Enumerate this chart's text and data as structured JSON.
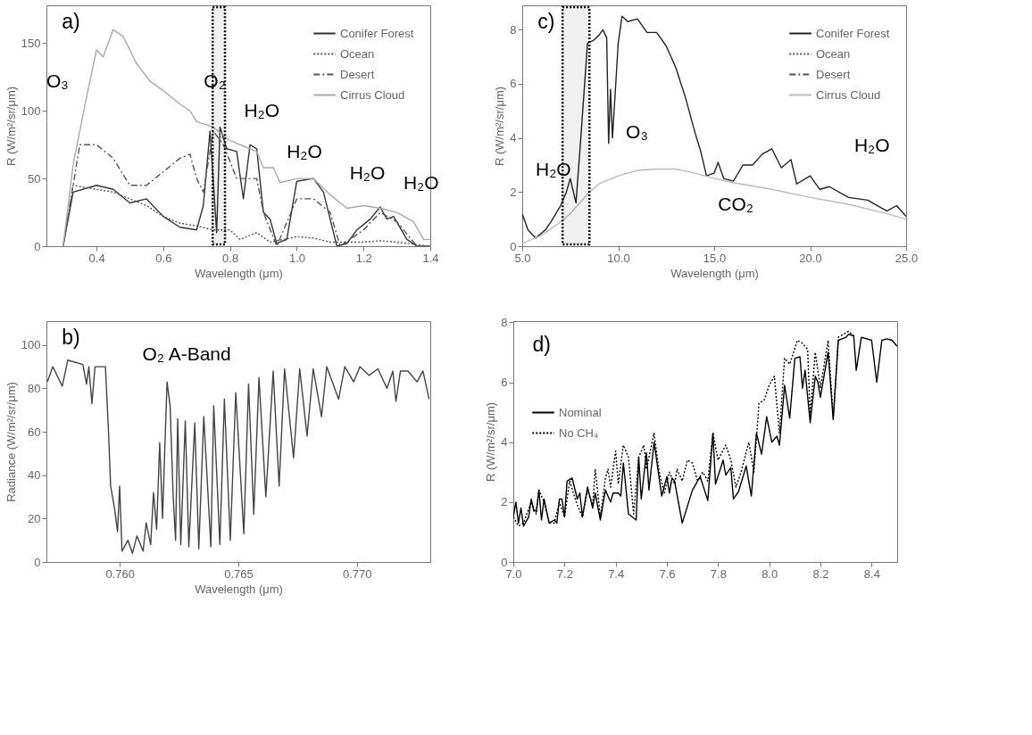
{
  "chart_data": [
    {
      "type": "line",
      "xlabel": "Wavelength (μm)",
      "ylabel": "R (W/m²/sr/μm)",
      "xlim": [
        0.25,
        1.4
      ],
      "ylim": [
        0,
        178
      ],
      "xticks": [
        0.4,
        0.6,
        0.8,
        {
          "value": 1.0,
          "label": "1.0"
        },
        1.2,
        1.4
      ],
      "yticks": [
        0,
        50,
        100,
        150
      ],
      "legend": "top right",
      "marker": "none",
      "series": [
        {
          "name": "Conifer Forest",
          "color": "#333333",
          "line_style": "solid",
          "x": [
            0.3,
            0.33,
            0.4,
            0.45,
            0.5,
            0.55,
            0.6,
            0.65,
            0.7,
            0.72,
            0.74,
            0.76,
            0.77,
            0.79,
            0.82,
            0.84,
            0.86,
            0.88,
            0.9,
            0.92,
            0.94,
            0.97,
            1.0,
            1.05,
            1.08,
            1.12,
            1.15,
            1.18,
            1.22,
            1.25,
            1.27,
            1.29,
            1.33,
            1.36,
            1.4
          ],
          "values": [
            0,
            40,
            45,
            42,
            32,
            35,
            22,
            14,
            12,
            30,
            85,
            10,
            88,
            72,
            70,
            35,
            75,
            72,
            25,
            20,
            2,
            5,
            48,
            50,
            40,
            0,
            2,
            12,
            20,
            29,
            20,
            22,
            5,
            0,
            0
          ]
        },
        {
          "name": "Ocean",
          "color": "#555555",
          "line_style": "dotted",
          "x": [
            0.3,
            0.33,
            0.4,
            0.45,
            0.5,
            0.55,
            0.6,
            0.65,
            0.7,
            0.75,
            0.8,
            0.83,
            0.88,
            0.92,
            1.0,
            1.05,
            1.1,
            1.2,
            1.25,
            1.3,
            1.4
          ],
          "values": [
            0,
            45,
            42,
            40,
            35,
            30,
            22,
            17,
            15,
            12,
            12,
            5,
            10,
            3,
            7,
            6,
            3,
            3,
            4,
            3,
            0
          ]
        },
        {
          "name": "Desert",
          "color": "#555555",
          "line_style": "dashed",
          "x": [
            0.3,
            0.35,
            0.4,
            0.45,
            0.5,
            0.55,
            0.6,
            0.65,
            0.68,
            0.7,
            0.72,
            0.75,
            0.78,
            0.82,
            0.85,
            0.88,
            0.9,
            0.94,
            1.0,
            1.05,
            1.1,
            1.13,
            1.2,
            1.25,
            1.3,
            1.36
          ],
          "values": [
            0,
            75,
            75,
            65,
            45,
            45,
            55,
            65,
            68,
            50,
            40,
            85,
            75,
            50,
            50,
            50,
            25,
            0,
            35,
            35,
            25,
            0,
            12,
            25,
            18,
            0
          ]
        },
        {
          "name": "Cirrus Cloud",
          "color": "#aaaaaa",
          "line_style": "solid",
          "x": [
            0.3,
            0.33,
            0.37,
            0.4,
            0.42,
            0.45,
            0.48,
            0.52,
            0.56,
            0.6,
            0.65,
            0.68,
            0.7,
            0.75,
            0.8,
            0.85,
            0.88,
            0.9,
            0.93,
            0.95,
            1.0,
            1.05,
            1.1,
            1.15,
            1.2,
            1.25,
            1.3,
            1.35,
            1.38,
            1.4
          ],
          "values": [
            0,
            60,
            110,
            145,
            140,
            160,
            155,
            135,
            122,
            115,
            105,
            100,
            92,
            88,
            78,
            73,
            70,
            58,
            58,
            47,
            50,
            50,
            38,
            28,
            30,
            28,
            25,
            18,
            5,
            5
          ]
        }
      ],
      "bands": [
        {
          "axis": "x",
          "from": 0.748,
          "to": 0.785,
          "color": "#000000"
        }
      ],
      "annotations": [
        "a)",
        "O₃",
        "O₂",
        "H₂O",
        "H₂O",
        "H₂O",
        "H₂O"
      ]
    },
    {
      "type": "line",
      "xlabel": "Wavelength (μm)",
      "ylabel": "R (W/m²/sr/μm)",
      "xlim": [
        5,
        25
      ],
      "ylim": [
        0,
        8.9
      ],
      "xticks": [
        {
          "value": 5,
          "label": "5.0"
        },
        {
          "value": 10,
          "label": "10.0"
        },
        {
          "value": 15,
          "label": "15.0"
        },
        {
          "value": 20,
          "label": "20.0"
        },
        {
          "value": 25,
          "label": "25.0"
        }
      ],
      "yticks": [
        0,
        2,
        4,
        6,
        8
      ],
      "legend": "top right",
      "marker": "none",
      "series": [
        {
          "name": "Conifer Forest",
          "color": "#222222",
          "line_style": "solid",
          "x": [
            5,
            5.3,
            5.7,
            6.2,
            6.5,
            7,
            7.3,
            7.5,
            7.8,
            8,
            8.2,
            8.4,
            8.7,
            9,
            9.2,
            9.4,
            9.5,
            9.6,
            9.7,
            10,
            10.2,
            10.5,
            11,
            11.5,
            12,
            12.5,
            13,
            13.5,
            14,
            14.3,
            14.6,
            15,
            15.2,
            15.5,
            16,
            16.5,
            17,
            17.5,
            18,
            18.5,
            19,
            19.3,
            20,
            20.5,
            21,
            22,
            23,
            24,
            24.5,
            25
          ],
          "values": [
            1.2,
            0.6,
            0.3,
            0.6,
            0.9,
            1.5,
            2,
            2.5,
            1.6,
            3.5,
            5.5,
            7.5,
            7.6,
            7.8,
            8.0,
            7.7,
            3.8,
            5.8,
            4.0,
            7.5,
            8.5,
            8.3,
            8.4,
            7.9,
            7.9,
            7.4,
            6.6,
            5.5,
            4.2,
            3.5,
            2.6,
            2.7,
            3.1,
            2.5,
            2.4,
            3.0,
            3.0,
            3.4,
            3.6,
            2.9,
            3.2,
            2.3,
            2.6,
            2.1,
            2.2,
            1.8,
            1.7,
            1.3,
            1.5,
            1.1
          ]
        },
        {
          "name": "Ocean",
          "color": "#555555",
          "line_style": "dotted"
        },
        {
          "name": "Desert",
          "color": "#555555",
          "line_style": "dashed"
        },
        {
          "name": "Cirrus Cloud",
          "color": "#bbbbbb",
          "line_style": "solid",
          "x": [
            5,
            6,
            7,
            7.5,
            8,
            8.5,
            9,
            10,
            11,
            12,
            13,
            14,
            15,
            16,
            18,
            20,
            22,
            24,
            25
          ],
          "values": [
            0.1,
            0.4,
            0.9,
            1.2,
            1.6,
            2.0,
            2.3,
            2.6,
            2.8,
            2.85,
            2.85,
            2.7,
            2.5,
            2.35,
            2.1,
            1.8,
            1.55,
            1.2,
            1.0
          ]
        }
      ],
      "bands": [
        {
          "axis": "x",
          "from": 7.1,
          "to": 8.5,
          "color": "#000000"
        }
      ],
      "annotations": [
        "c)",
        "H₂O",
        "O₃",
        "CO₂",
        "H₂O"
      ]
    },
    {
      "type": "line",
      "xlabel": "Wavelength (μm)",
      "ylabel": "Radiance (W/m²/sr/μm)",
      "xlim": [
        0.7569,
        0.7731
      ],
      "ylim": [
        0,
        111
      ],
      "xticks": [
        {
          "value": 0.76,
          "label": "0.760"
        },
        {
          "value": 0.765,
          "label": "0.765"
        },
        {
          "value": 0.77,
          "label": "0.770"
        }
      ],
      "yticks": [
        0,
        20,
        40,
        60,
        80,
        100
      ],
      "marker": "none",
      "series": [
        {
          "color": "#444444",
          "line_style": "solid",
          "x": [
            0.75694,
            0.75717,
            0.75757,
            0.7578,
            0.75844,
            0.75859,
            0.75869,
            0.75882,
            0.75895,
            0.75939,
            0.75952,
            0.75961,
            0.75977,
            0.7599,
            0.75999,
            0.76009,
            0.76034,
            0.76053,
            0.76072,
            0.76098,
            0.76111,
            0.7613,
            0.76142,
            0.76155,
            0.76168,
            0.7618,
            0.76199,
            0.76212,
            0.76225,
            0.76235,
            0.76244,
            0.76257,
            0.76276,
            0.76291,
            0.76316,
            0.76333,
            0.76354,
            0.76384,
            0.76396,
            0.76422,
            0.76441,
            0.76466,
            0.76489,
            0.76523,
            0.76543,
            0.76565,
            0.76587,
            0.76616,
            0.76647,
            0.76672,
            0.76695,
            0.76733,
            0.76759,
            0.7679,
            0.76816,
            0.76851,
            0.76873,
            0.76923,
            0.76949,
            0.76987,
            0.77013,
            0.77051,
            0.77089,
            0.77127,
            0.77152,
            0.77165,
            0.77184,
            0.77216,
            0.77254,
            0.77279,
            0.77305
          ],
          "values": [
            83,
            90,
            81,
            93,
            91,
            82,
            90,
            73,
            90,
            90,
            60,
            35,
            25,
            14,
            35,
            5,
            10,
            4,
            12,
            5,
            18,
            8,
            32,
            15,
            55,
            20,
            83,
            72,
            30,
            10,
            66,
            8,
            65,
            7,
            64,
            6,
            67,
            7,
            72,
            8,
            75,
            10,
            78,
            13,
            82,
            22,
            85,
            30,
            88,
            35,
            89,
            48,
            89,
            58,
            89,
            67,
            90,
            75,
            90,
            83,
            90,
            86,
            89,
            80,
            88,
            74,
            88,
            88,
            83,
            88,
            75
          ]
        }
      ],
      "annotations": [
        "b)",
        "O₂ A-Band"
      ]
    },
    {
      "type": "line",
      "ylabel": "R (W/m²/sr/μm)",
      "xlim": [
        7.0,
        8.5
      ],
      "ylim": [
        0,
        8.04
      ],
      "xticks": [
        {
          "value": 7,
          "label": "7.0"
        },
        7.2,
        7.4,
        7.6,
        7.8,
        {
          "value": 8,
          "label": "8.0"
        },
        8.2,
        8.4
      ],
      "yticks": [
        0,
        2,
        4,
        6,
        8
      ],
      "legend": "left",
      "marker": "none",
      "series": [
        {
          "name": "Nominal",
          "color": "#000000",
          "line_style": "solid",
          "x": [
            7.0,
            7.01,
            7.02,
            7.03,
            7.04,
            7.06,
            7.07,
            7.08,
            7.09,
            7.1,
            7.11,
            7.12,
            7.14,
            7.16,
            7.17,
            7.18,
            7.19,
            7.2,
            7.21,
            7.23,
            7.25,
            7.26,
            7.27,
            7.29,
            7.31,
            7.32,
            7.34,
            7.36,
            7.38,
            7.39,
            7.41,
            7.42,
            7.43,
            7.45,
            7.48,
            7.49,
            7.5,
            7.52,
            7.53,
            7.55,
            7.58,
            7.6,
            7.61,
            7.62,
            7.63,
            7.66,
            7.7,
            7.73,
            7.76,
            7.78,
            7.79,
            7.82,
            7.83,
            7.85,
            7.86,
            7.88,
            7.91,
            7.93,
            7.95,
            7.97,
            7.99,
            8.01,
            8.03,
            8.04,
            8.06,
            8.08,
            8.1,
            8.12,
            8.13,
            8.14,
            8.16,
            8.18,
            8.19,
            8.2,
            8.23,
            8.25,
            8.27,
            8.3,
            8.31,
            8.33,
            8.34,
            8.36,
            8.4,
            8.42,
            8.44,
            8.46,
            8.48,
            8.5
          ],
          "values": [
            1.5,
            2.0,
            1.3,
            1.8,
            1.2,
            1.5,
            2.1,
            1.7,
            1.7,
            2.4,
            1.4,
            2.1,
            1.3,
            1.4,
            1.3,
            2.1,
            2.1,
            1.5,
            2.7,
            2.8,
            2.1,
            2.3,
            1.5,
            2.5,
            1.8,
            2.3,
            1.4,
            2.4,
            2.0,
            2.3,
            2.3,
            2.2,
            3.3,
            1.6,
            1.4,
            3.5,
            2.1,
            3.65,
            2.4,
            4.0,
            2.2,
            2.85,
            2.3,
            2.8,
            2.7,
            1.3,
            2.4,
            2.85,
            2.05,
            4.3,
            2.6,
            3.4,
            2.9,
            3.15,
            2.1,
            2.35,
            3.2,
            2.2,
            4.3,
            3.6,
            4.85,
            4.0,
            4.2,
            3.9,
            5.9,
            4.8,
            6.8,
            6.85,
            5.8,
            6.4,
            4.65,
            6.2,
            6.0,
            5.5,
            7.0,
            4.75,
            7.4,
            7.5,
            7.6,
            7.55,
            6.4,
            7.5,
            7.4,
            6.0,
            7.4,
            7.45,
            7.4,
            7.2
          ]
        },
        {
          "name": "No CH₄",
          "color": "#000000",
          "line_style": "dotted",
          "x": [
            7.0,
            7.02,
            7.04,
            7.07,
            7.09,
            7.1,
            7.12,
            7.14,
            7.16,
            7.18,
            7.2,
            7.22,
            7.25,
            7.27,
            7.29,
            7.31,
            7.32,
            7.34,
            7.36,
            7.37,
            7.38,
            7.4,
            7.41,
            7.43,
            7.45,
            7.47,
            7.49,
            7.51,
            7.52,
            7.55,
            7.57,
            7.59,
            7.61,
            7.63,
            7.64,
            7.66,
            7.68,
            7.7,
            7.72,
            7.74,
            7.76,
            7.78,
            7.8,
            7.83,
            7.85,
            7.87,
            7.89,
            7.92,
            7.94,
            7.96,
            7.98,
            8.0,
            8.02,
            8.04,
            8.06,
            8.08,
            8.11,
            8.13,
            8.15,
            8.16,
            8.18,
            8.2,
            8.23,
            8.25,
            8.27,
            8.31,
            8.33
          ],
          "values": [
            1.5,
            1.2,
            1.3,
            2.0,
            1.6,
            2.4,
            2.0,
            1.3,
            1.3,
            2.0,
            1.5,
            2.7,
            1.9,
            1.5,
            2.4,
            1.9,
            3.1,
            1.5,
            2.8,
            3.1,
            2.5,
            3.7,
            2.6,
            3.9,
            3.5,
            1.6,
            3.5,
            3.9,
            3.1,
            4.3,
            3.0,
            2.3,
            3.0,
            2.6,
            3.1,
            2.7,
            3.4,
            3.3,
            2.7,
            3.0,
            2.7,
            4.3,
            3.4,
            3.9,
            3.4,
            2.5,
            3.0,
            4.0,
            3.0,
            5.3,
            5.4,
            5.9,
            6.2,
            4.3,
            6.8,
            6.6,
            7.4,
            7.3,
            7.1,
            4.9,
            7.0,
            5.8,
            7.4,
            4.8,
            7.5,
            7.7,
            7.55
          ]
        }
      ],
      "annotations": [
        "d)"
      ]
    }
  ]
}
